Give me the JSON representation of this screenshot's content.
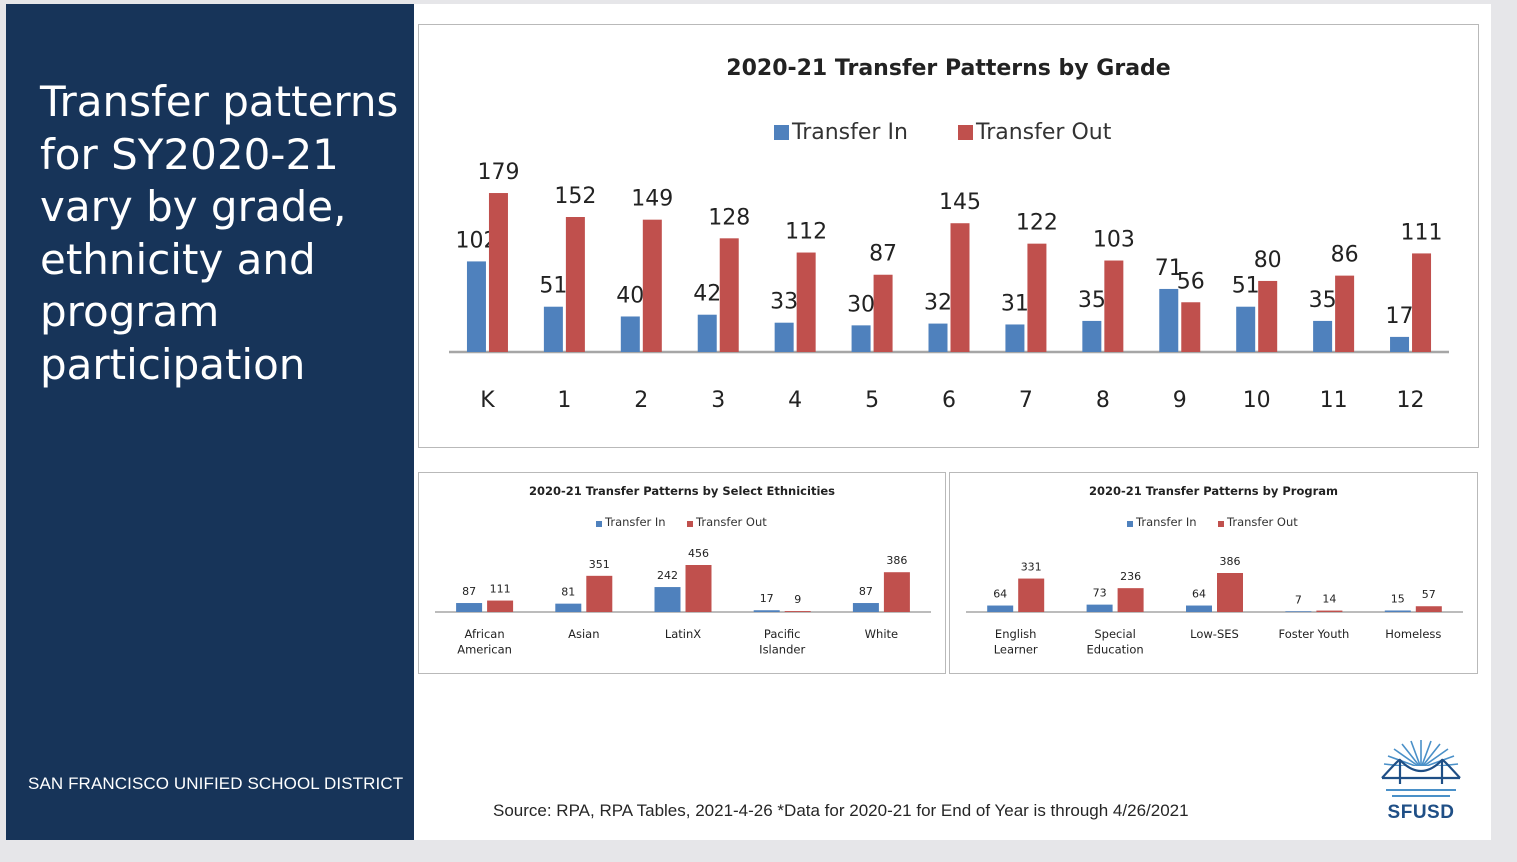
{
  "sidebar": {
    "title": "Transfer patterns for SY2020-21 vary by grade, ethnicity and program participation",
    "district": "SAN FRANCISCO UNIFIED SCHOOL DISTRICT"
  },
  "footnote": "Source: RPA, RPA Tables, 2021-4-26  *Data for 2020-21 for End of Year is through 4/26/2021",
  "logo": {
    "text": "SFUSD",
    "icon": "golden-gate-bridge-sunburst-icon"
  },
  "colors": {
    "transfer_in": "#4f81bd",
    "transfer_out": "#c0504d",
    "sidebar": "#173459"
  },
  "chart_data": [
    {
      "id": "grade",
      "type": "bar",
      "title": "2020-21 Transfer Patterns by Grade",
      "legend_position": "top",
      "categories": [
        "K",
        "1",
        "2",
        "3",
        "4",
        "5",
        "6",
        "7",
        "8",
        "9",
        "10",
        "11",
        "12"
      ],
      "series": [
        {
          "name": "Transfer In",
          "values": [
            102,
            51,
            40,
            42,
            33,
            30,
            32,
            31,
            35,
            71,
            51,
            35,
            17
          ]
        },
        {
          "name": "Transfer Out",
          "values": [
            179,
            152,
            149,
            128,
            112,
            87,
            145,
            122,
            103,
            56,
            80,
            86,
            111
          ]
        }
      ],
      "ylim": [
        0,
        200
      ],
      "grid": false
    },
    {
      "id": "ethnicity",
      "type": "bar",
      "title": "2020-21 Transfer Patterns by Select Ethnicities",
      "legend_position": "top",
      "categories": [
        "African American",
        "Asian",
        "LatinX",
        "Pacific Islander",
        "White"
      ],
      "series": [
        {
          "name": "Transfer In",
          "values": [
            87,
            81,
            242,
            17,
            87
          ]
        },
        {
          "name": "Transfer Out",
          "values": [
            111,
            351,
            456,
            9,
            386
          ]
        }
      ],
      "ylim": [
        0,
        500
      ],
      "grid": false
    },
    {
      "id": "program",
      "type": "bar",
      "title": "2020-21 Transfer Patterns by Program",
      "legend_position": "top",
      "categories": [
        "English Learner",
        "Special Education",
        "Low-SES",
        "Foster Youth",
        "Homeless"
      ],
      "series": [
        {
          "name": "Transfer In",
          "values": [
            64,
            73,
            64,
            7,
            15
          ]
        },
        {
          "name": "Transfer Out",
          "values": [
            331,
            236,
            386,
            14,
            57
          ]
        }
      ],
      "ylim": [
        0,
        400
      ],
      "grid": false
    }
  ]
}
